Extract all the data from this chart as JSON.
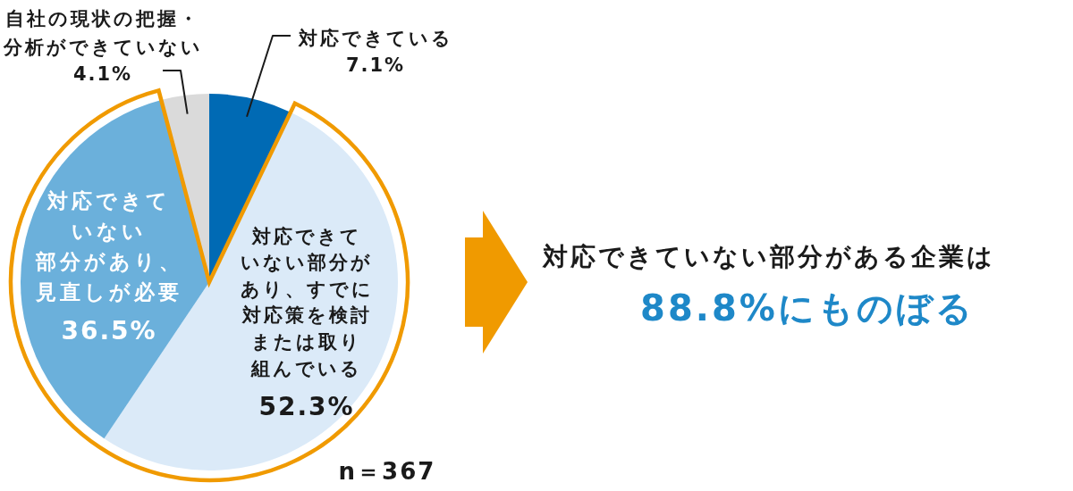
{
  "chart_data": {
    "type": "pie",
    "categories": [
      "対応できている",
      "対応できていない部分があり、すでに対応策を検討または取り組んでいる",
      "対応できていない部分があり、見直しが必要",
      "自社の現状の把握・分析ができていない"
    ],
    "values": [
      7.1,
      52.3,
      36.5,
      4.1
    ],
    "colors": [
      "#006ab4",
      "#dbeaf8",
      "#6bb0db",
      "#dadada"
    ],
    "value_labels": [
      "7.1%",
      "52.3%",
      "36.5%",
      "4.1%"
    ],
    "annotations": [
      "n＝367",
      "対応できていない部分がある企業は",
      "88.8%にものぼる"
    ]
  }
}
